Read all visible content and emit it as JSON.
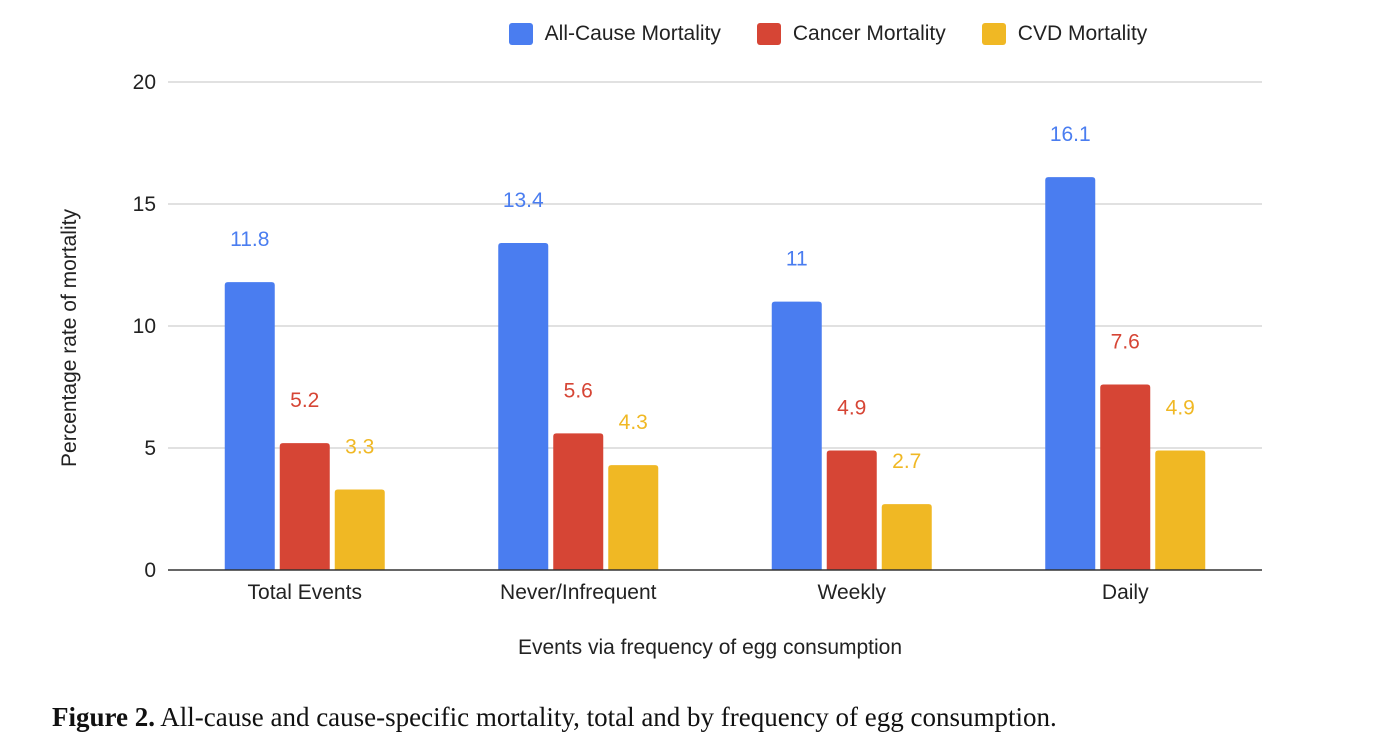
{
  "caption": {
    "label": "Figure 2.",
    "text": "All-cause and cause-specific mortality, total and by frequency of egg consumption."
  },
  "chart_data": {
    "type": "bar",
    "categories": [
      "Total Events",
      "Never/Infrequent",
      "Weekly",
      "Daily"
    ],
    "series": [
      {
        "name": "All-Cause Mortality",
        "values": [
          11.8,
          13.4,
          11,
          16.1
        ],
        "labels": [
          "11.8",
          "13.4",
          "11",
          "16.1"
        ],
        "color": "#4a7df0"
      },
      {
        "name": "Cancer Mortality",
        "values": [
          5.2,
          5.6,
          4.9,
          7.6
        ],
        "labels": [
          "5.2",
          "5.6",
          "4.9",
          "7.6"
        ],
        "color": "#d64535"
      },
      {
        "name": "CVD Mortality",
        "values": [
          3.3,
          4.3,
          2.7,
          4.9
        ],
        "labels": [
          "3.3",
          "4.3",
          "2.7",
          "4.9"
        ],
        "color": "#f0b824"
      }
    ],
    "xlabel": "Events via frequency of egg consumption",
    "ylabel": "Percentage rate of mortality",
    "ylim": [
      0,
      20
    ],
    "yticks": [
      "0",
      "5",
      "10",
      "15",
      "20"
    ],
    "ytick_values": [
      0,
      5,
      10,
      15,
      20
    ],
    "grid": true,
    "legend_position": "top"
  }
}
